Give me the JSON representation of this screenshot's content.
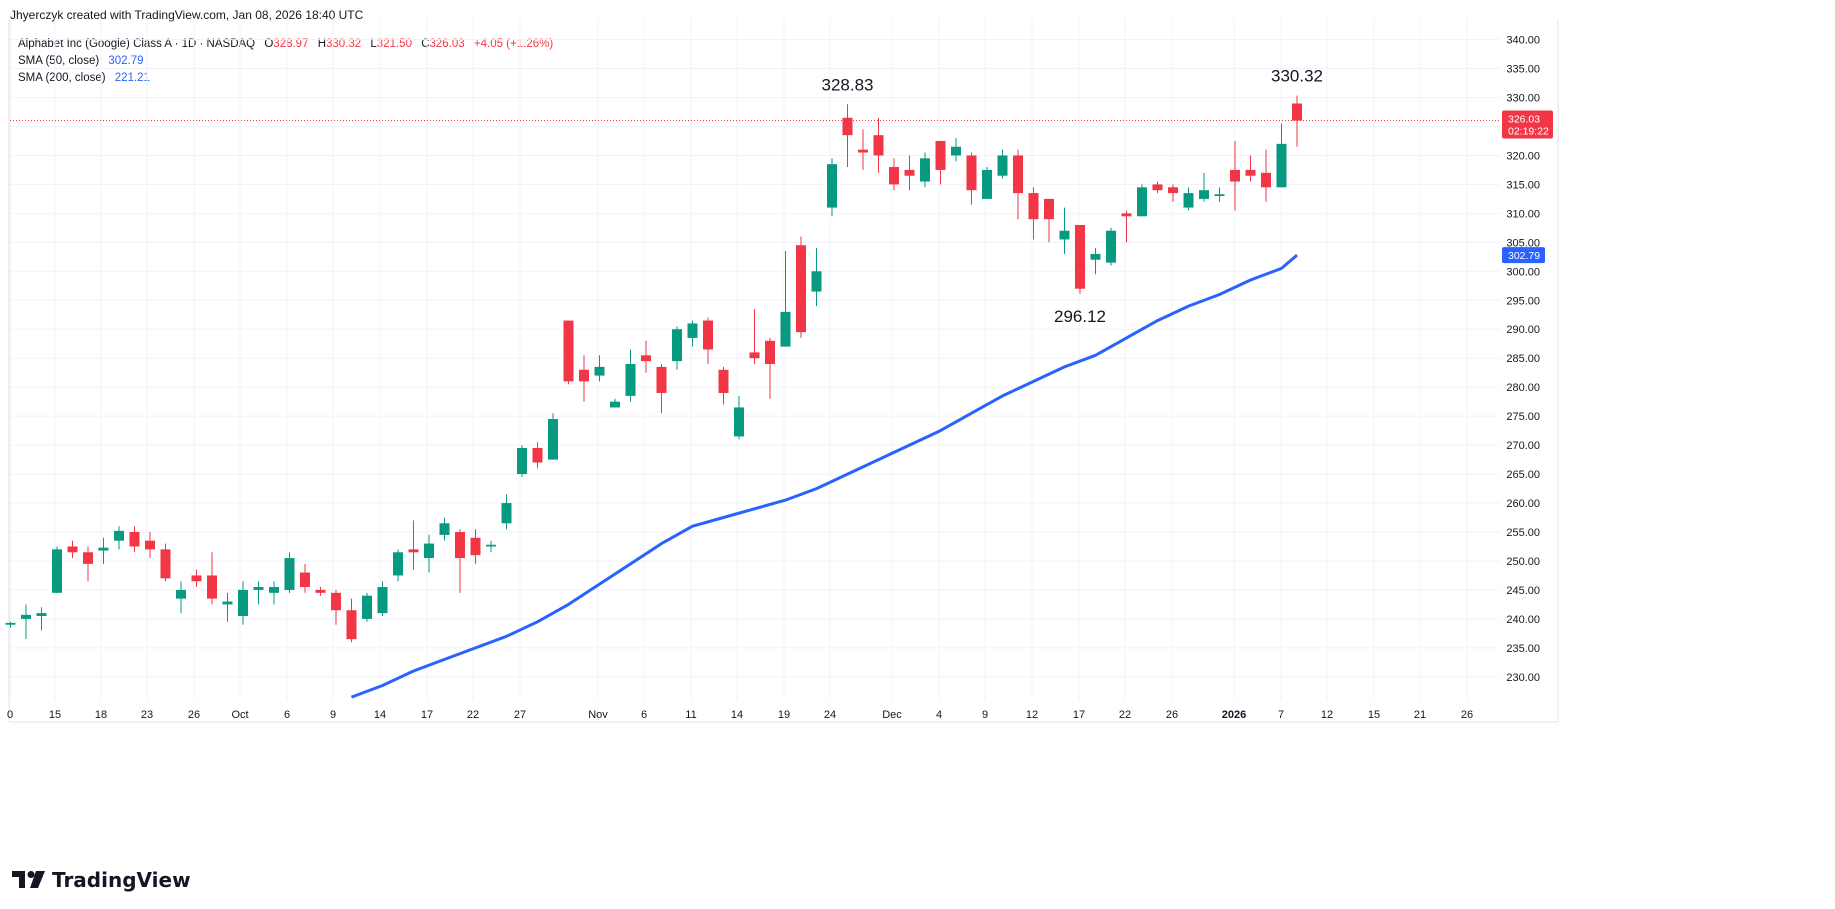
{
  "header": {
    "caption": "Jhyerczyk created with TradingView.com, Jan 08, 2026 18:40 UTC"
  },
  "legend": {
    "symbol": "Alphabet Inc (Google) Class A · 1D · NASDAQ",
    "o_label": "O",
    "o_value": "328.97",
    "h_label": "H",
    "h_value": "330.32",
    "l_label": "L",
    "l_value": "321.50",
    "c_label": "C",
    "c_value": "326.03",
    "change": "+4.05 (+1.26%)",
    "sma50_label": "SMA (50, close)",
    "sma50_value": "302.79",
    "sma200_label": "SMA (200, close)",
    "sma200_value": "221.21"
  },
  "price_tags": {
    "last_price": "326.03",
    "countdown": "02:19:22",
    "sma_value": "302.79"
  },
  "footer": {
    "brand": "TradingView"
  },
  "colors": {
    "up": "#089981",
    "down": "#f23645",
    "sma": "#2962ff",
    "grid": "#f0f3fa",
    "text": "#131722"
  },
  "chart_data": {
    "type": "candlestick",
    "title": "Alphabet Inc (Google) Class A · 1D · NASDAQ",
    "xlabel": "",
    "ylabel": "",
    "ylim": [
      226,
      342
    ],
    "y_ticks": [
      230,
      235,
      240,
      245,
      250,
      255,
      260,
      265,
      270,
      275,
      280,
      285,
      290,
      295,
      300,
      305,
      310,
      315,
      320,
      325,
      330,
      335,
      340
    ],
    "y_tick_labels": [
      "230.00",
      "235.00",
      "240.00",
      "245.00",
      "250.00",
      "255.00",
      "260.00",
      "265.00",
      "270.00",
      "275.00",
      "280.00",
      "285.00",
      "290.00",
      "295.00",
      "300.00",
      "305.00",
      "310.00",
      "315.00",
      "320.00",
      "325.00",
      "330.00",
      "335.00",
      "340.00"
    ],
    "x_tick_labels": [
      "0",
      "15",
      "18",
      "23",
      "26",
      "Oct",
      "6",
      "9",
      "14",
      "17",
      "22",
      "27",
      "Nov",
      "6",
      "11",
      "14",
      "19",
      "24",
      "Dec",
      "4",
      "9",
      "12",
      "17",
      "22",
      "26",
      "2026",
      "7",
      "12",
      "15",
      "21",
      "26"
    ],
    "grid": true,
    "candles": [
      {
        "o": 239.0,
        "h": 239.5,
        "l": 238.5,
        "c": 239.3
      },
      {
        "o": 240.0,
        "h": 242.5,
        "l": 236.5,
        "c": 240.7
      },
      {
        "o": 240.5,
        "h": 242.0,
        "l": 238.0,
        "c": 241.0
      },
      {
        "o": 244.5,
        "h": 252.5,
        "l": 244.5,
        "c": 252.0
      },
      {
        "o": 252.5,
        "h": 253.5,
        "l": 250.5,
        "c": 251.5
      },
      {
        "o": 251.5,
        "h": 252.5,
        "l": 246.5,
        "c": 249.5
      },
      {
        "o": 251.8,
        "h": 254.0,
        "l": 249.5,
        "c": 252.3
      },
      {
        "o": 253.5,
        "h": 256.0,
        "l": 252.0,
        "c": 255.2
      },
      {
        "o": 255.0,
        "h": 256.0,
        "l": 251.5,
        "c": 252.5
      },
      {
        "o": 253.5,
        "h": 255.0,
        "l": 250.5,
        "c": 252.0
      },
      {
        "o": 252.0,
        "h": 253.0,
        "l": 246.5,
        "c": 247.0
      },
      {
        "o": 243.5,
        "h": 246.5,
        "l": 241.0,
        "c": 245.0
      },
      {
        "o": 247.5,
        "h": 248.5,
        "l": 245.5,
        "c": 246.5
      },
      {
        "o": 247.5,
        "h": 251.5,
        "l": 242.5,
        "c": 243.5
      },
      {
        "o": 242.5,
        "h": 244.5,
        "l": 239.5,
        "c": 243.0
      },
      {
        "o": 240.5,
        "h": 246.5,
        "l": 239.0,
        "c": 245.0
      },
      {
        "o": 245.0,
        "h": 246.5,
        "l": 242.5,
        "c": 245.5
      },
      {
        "o": 244.5,
        "h": 246.5,
        "l": 242.5,
        "c": 245.5
      },
      {
        "o": 245.0,
        "h": 251.5,
        "l": 244.5,
        "c": 250.5
      },
      {
        "o": 248.0,
        "h": 249.5,
        "l": 244.5,
        "c": 245.5
      },
      {
        "o": 245.0,
        "h": 245.5,
        "l": 244.0,
        "c": 244.5
      },
      {
        "o": 244.5,
        "h": 245.0,
        "l": 239.0,
        "c": 241.5
      },
      {
        "o": 241.5,
        "h": 243.5,
        "l": 236.0,
        "c": 236.5
      },
      {
        "o": 240.0,
        "h": 244.5,
        "l": 239.5,
        "c": 244.0
      },
      {
        "o": 241.0,
        "h": 246.5,
        "l": 240.5,
        "c": 245.5
      },
      {
        "o": 247.5,
        "h": 252.0,
        "l": 246.5,
        "c": 251.5
      },
      {
        "o": 252.0,
        "h": 257.0,
        "l": 248.5,
        "c": 251.5
      },
      {
        "o": 250.5,
        "h": 254.5,
        "l": 248.0,
        "c": 253.0
      },
      {
        "o": 254.5,
        "h": 257.5,
        "l": 253.5,
        "c": 256.5
      },
      {
        "o": 255.0,
        "h": 255.5,
        "l": 244.5,
        "c": 250.5
      },
      {
        "o": 254.0,
        "h": 255.5,
        "l": 249.5,
        "c": 251.0
      },
      {
        "o": 252.5,
        "h": 253.5,
        "l": 251.5,
        "c": 252.8
      },
      {
        "o": 256.5,
        "h": 261.5,
        "l": 255.5,
        "c": 260.0
      },
      {
        "o": 265.0,
        "h": 270.0,
        "l": 264.5,
        "c": 269.5
      },
      {
        "o": 269.5,
        "h": 270.5,
        "l": 266.0,
        "c": 267.0
      },
      {
        "o": 267.5,
        "h": 275.5,
        "l": 267.5,
        "c": 274.5
      },
      {
        "o": 291.5,
        "h": 291.5,
        "l": 280.5,
        "c": 281.0
      },
      {
        "o": 283.0,
        "h": 285.5,
        "l": 277.5,
        "c": 281.0
      },
      {
        "o": 282.0,
        "h": 285.5,
        "l": 281.0,
        "c": 283.5
      },
      {
        "o": 276.5,
        "h": 278.0,
        "l": 276.5,
        "c": 277.5
      },
      {
        "o": 278.5,
        "h": 286.5,
        "l": 277.5,
        "c": 284.0
      },
      {
        "o": 285.5,
        "h": 288.0,
        "l": 282.5,
        "c": 284.5
      },
      {
        "o": 283.5,
        "h": 284.0,
        "l": 275.5,
        "c": 279.0
      },
      {
        "o": 284.5,
        "h": 290.5,
        "l": 283.0,
        "c": 290.0
      },
      {
        "o": 288.5,
        "h": 291.5,
        "l": 287.0,
        "c": 291.0
      },
      {
        "o": 291.5,
        "h": 292.0,
        "l": 284.0,
        "c": 286.5
      },
      {
        "o": 283.0,
        "h": 283.5,
        "l": 277.0,
        "c": 279.0
      },
      {
        "o": 271.5,
        "h": 278.5,
        "l": 271.0,
        "c": 276.5
      },
      {
        "o": 286.0,
        "h": 293.5,
        "l": 284.0,
        "c": 285.0
      },
      {
        "o": 288.0,
        "h": 288.5,
        "l": 278.0,
        "c": 284.0
      },
      {
        "o": 287.0,
        "h": 303.5,
        "l": 287.0,
        "c": 293.0
      },
      {
        "o": 304.5,
        "h": 306.0,
        "l": 288.5,
        "c": 289.5
      },
      {
        "o": 296.5,
        "h": 304.0,
        "l": 294.0,
        "c": 300.0
      },
      {
        "o": 311.0,
        "h": 319.5,
        "l": 309.5,
        "c": 318.5
      },
      {
        "o": 326.5,
        "h": 328.83,
        "l": 318.0,
        "c": 323.5
      },
      {
        "o": 321.0,
        "h": 324.5,
        "l": 317.5,
        "c": 320.5
      },
      {
        "o": 323.5,
        "h": 326.5,
        "l": 317.0,
        "c": 320.0
      },
      {
        "o": 318.0,
        "h": 319.5,
        "l": 314.0,
        "c": 315.0
      },
      {
        "o": 317.5,
        "h": 320.0,
        "l": 314.0,
        "c": 316.5
      },
      {
        "o": 315.5,
        "h": 320.5,
        "l": 314.5,
        "c": 319.5
      },
      {
        "o": 322.5,
        "h": 322.5,
        "l": 315.0,
        "c": 317.5
      },
      {
        "o": 320.0,
        "h": 323.0,
        "l": 319.0,
        "c": 321.5
      },
      {
        "o": 320.0,
        "h": 320.5,
        "l": 311.5,
        "c": 314.0
      },
      {
        "o": 312.5,
        "h": 318.0,
        "l": 312.5,
        "c": 317.5
      },
      {
        "o": 316.5,
        "h": 321.0,
        "l": 316.0,
        "c": 320.0
      },
      {
        "o": 320.0,
        "h": 321.0,
        "l": 309.0,
        "c": 313.5
      },
      {
        "o": 313.5,
        "h": 314.5,
        "l": 305.5,
        "c": 309.0
      },
      {
        "o": 312.5,
        "h": 312.5,
        "l": 305.0,
        "c": 309.0
      },
      {
        "o": 305.5,
        "h": 311.0,
        "l": 303.0,
        "c": 307.0
      },
      {
        "o": 308.0,
        "h": 308.0,
        "l": 296.12,
        "c": 297.0
      },
      {
        "o": 302.0,
        "h": 304.0,
        "l": 299.5,
        "c": 303.0
      },
      {
        "o": 301.5,
        "h": 307.5,
        "l": 301.0,
        "c": 307.0
      },
      {
        "o": 310.0,
        "h": 310.5,
        "l": 305.0,
        "c": 309.5
      },
      {
        "o": 309.5,
        "h": 315.0,
        "l": 309.5,
        "c": 314.5
      },
      {
        "o": 315.0,
        "h": 315.5,
        "l": 313.5,
        "c": 314.0
      },
      {
        "o": 314.5,
        "h": 315.0,
        "l": 312.0,
        "c": 313.5
      },
      {
        "o": 311.0,
        "h": 314.5,
        "l": 310.5,
        "c": 313.5
      },
      {
        "o": 312.5,
        "h": 317.0,
        "l": 312.0,
        "c": 314.0
      },
      {
        "o": 313.0,
        "h": 314.5,
        "l": 312.0,
        "c": 313.3
      },
      {
        "o": 317.5,
        "h": 322.5,
        "l": 310.5,
        "c": 315.5
      },
      {
        "o": 317.5,
        "h": 320.0,
        "l": 315.5,
        "c": 316.5
      },
      {
        "o": 317.0,
        "h": 321.0,
        "l": 312.0,
        "c": 314.5
      },
      {
        "o": 314.5,
        "h": 325.5,
        "l": 314.5,
        "c": 322.0
      },
      {
        "o": 328.97,
        "h": 330.32,
        "l": 321.5,
        "c": 326.03
      }
    ],
    "sma50": [
      [
        22,
        226.5
      ],
      [
        24,
        228.5
      ],
      [
        26,
        231.0
      ],
      [
        28,
        233.0
      ],
      [
        30,
        235.0
      ],
      [
        32,
        237.0
      ],
      [
        34,
        239.5
      ],
      [
        36,
        242.5
      ],
      [
        38,
        246.0
      ],
      [
        40,
        249.5
      ],
      [
        42,
        253.0
      ],
      [
        44,
        256.0
      ],
      [
        46,
        257.5
      ],
      [
        48,
        259.0
      ],
      [
        50,
        260.5
      ],
      [
        52,
        262.5
      ],
      [
        54,
        265.0
      ],
      [
        56,
        267.5
      ],
      [
        58,
        270.0
      ],
      [
        60,
        272.5
      ],
      [
        62,
        275.5
      ],
      [
        64,
        278.5
      ],
      [
        66,
        281.0
      ],
      [
        68,
        283.5
      ],
      [
        70,
        285.5
      ],
      [
        72,
        288.5
      ],
      [
        74,
        291.5
      ],
      [
        76,
        294.0
      ],
      [
        78,
        296.0
      ],
      [
        80,
        298.5
      ],
      [
        82,
        300.5
      ],
      [
        83,
        302.79
      ]
    ],
    "annotations": [
      {
        "text": "328.83",
        "index": 54,
        "value": 328.83,
        "pos": "above"
      },
      {
        "text": "330.32",
        "index": 83,
        "value": 330.32,
        "pos": "above"
      },
      {
        "text": "296.12",
        "index": 69,
        "value": 296.12,
        "pos": "below"
      }
    ],
    "last_price": 326.03,
    "sma_last": 302.79
  }
}
